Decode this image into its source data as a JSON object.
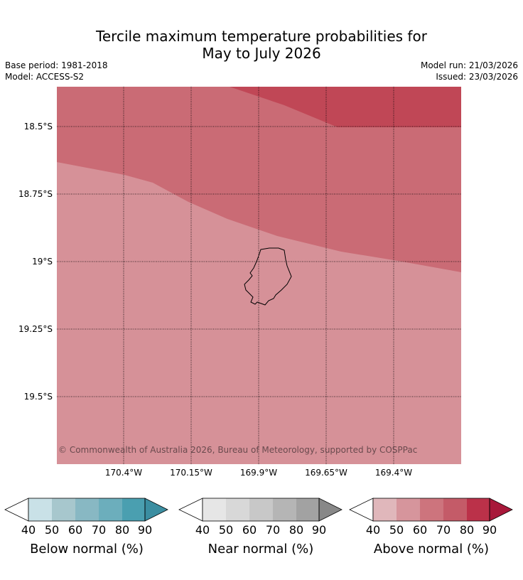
{
  "title": {
    "line1": "Tercile maximum temperature probabilities for",
    "line2": "May to July 2026"
  },
  "meta": {
    "base_period": "Base period: 1981-2018",
    "model": "Model: ACCESS-S2",
    "model_run": "Model run: 21/03/2026",
    "issued": "Issued: 23/03/2026"
  },
  "map": {
    "region": "Niue",
    "y_labels": [
      "18.5°S",
      "18.75°S",
      "19°S",
      "19.25°S",
      "19.5°S"
    ],
    "x_labels": [
      "170.4°W",
      "170.15°W",
      "169.9°W",
      "169.65°W",
      "169.4°W"
    ],
    "copyright": "© Commonwealth of Australia 2026, Bureau of Meteorology, supported by COSPPac",
    "zones": [
      {
        "name": "above-normal-50-60",
        "color": "#d69198"
      },
      {
        "name": "above-normal-60-70",
        "color": "#ca6b75"
      },
      {
        "name": "above-normal-70-80",
        "color": "#c04756"
      }
    ]
  },
  "legends": [
    {
      "id": "below",
      "title": "Below normal (%)",
      "ticks": [
        "40",
        "50",
        "60",
        "70",
        "80",
        "90"
      ],
      "colors": [
        "#c9e1e7",
        "#a7c7cd",
        "#88b8c3",
        "#6caebc",
        "#4a9fb0"
      ],
      "arrow": "#3b8ea1"
    },
    {
      "id": "near",
      "title": "Near normal (%)",
      "ticks": [
        "40",
        "50",
        "60",
        "70",
        "80",
        "90"
      ],
      "colors": [
        "#e6e6e6",
        "#d8d8d8",
        "#c8c8c8",
        "#b5b5b5",
        "#a2a2a2"
      ],
      "arrow": "#888888"
    },
    {
      "id": "above",
      "title": "Above normal (%)",
      "ticks": [
        "40",
        "50",
        "60",
        "70",
        "80",
        "90"
      ],
      "colors": [
        "#e0b7bb",
        "#d6959c",
        "#cd747d",
        "#c45b68",
        "#bb3149"
      ],
      "arrow": "#a8183a"
    }
  ]
}
